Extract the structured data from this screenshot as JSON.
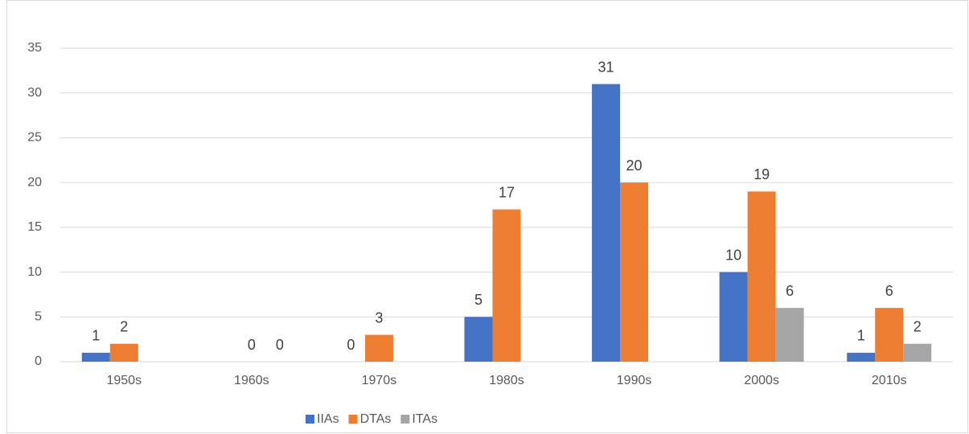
{
  "chart_data": {
    "type": "bar",
    "categories": [
      "1950s",
      "1960s",
      "1970s",
      "1980s",
      "1990s",
      "2000s",
      "2010s"
    ],
    "series": [
      {
        "name": "IIAs",
        "color": "#4472c4",
        "values": [
          1,
          null,
          0,
          5,
          31,
          10,
          1
        ]
      },
      {
        "name": "DTAs",
        "color": "#ed7d31",
        "values": [
          2,
          0,
          3,
          17,
          20,
          19,
          6
        ]
      },
      {
        "name": "ITAs",
        "color": "#a5a5a5",
        "values": [
          null,
          0,
          null,
          null,
          null,
          6,
          2
        ]
      }
    ],
    "ylim": [
      0,
      35
    ],
    "yticks": [
      0,
      5,
      10,
      15,
      20,
      25,
      30,
      35
    ],
    "grid": true,
    "legend": "bottom"
  }
}
